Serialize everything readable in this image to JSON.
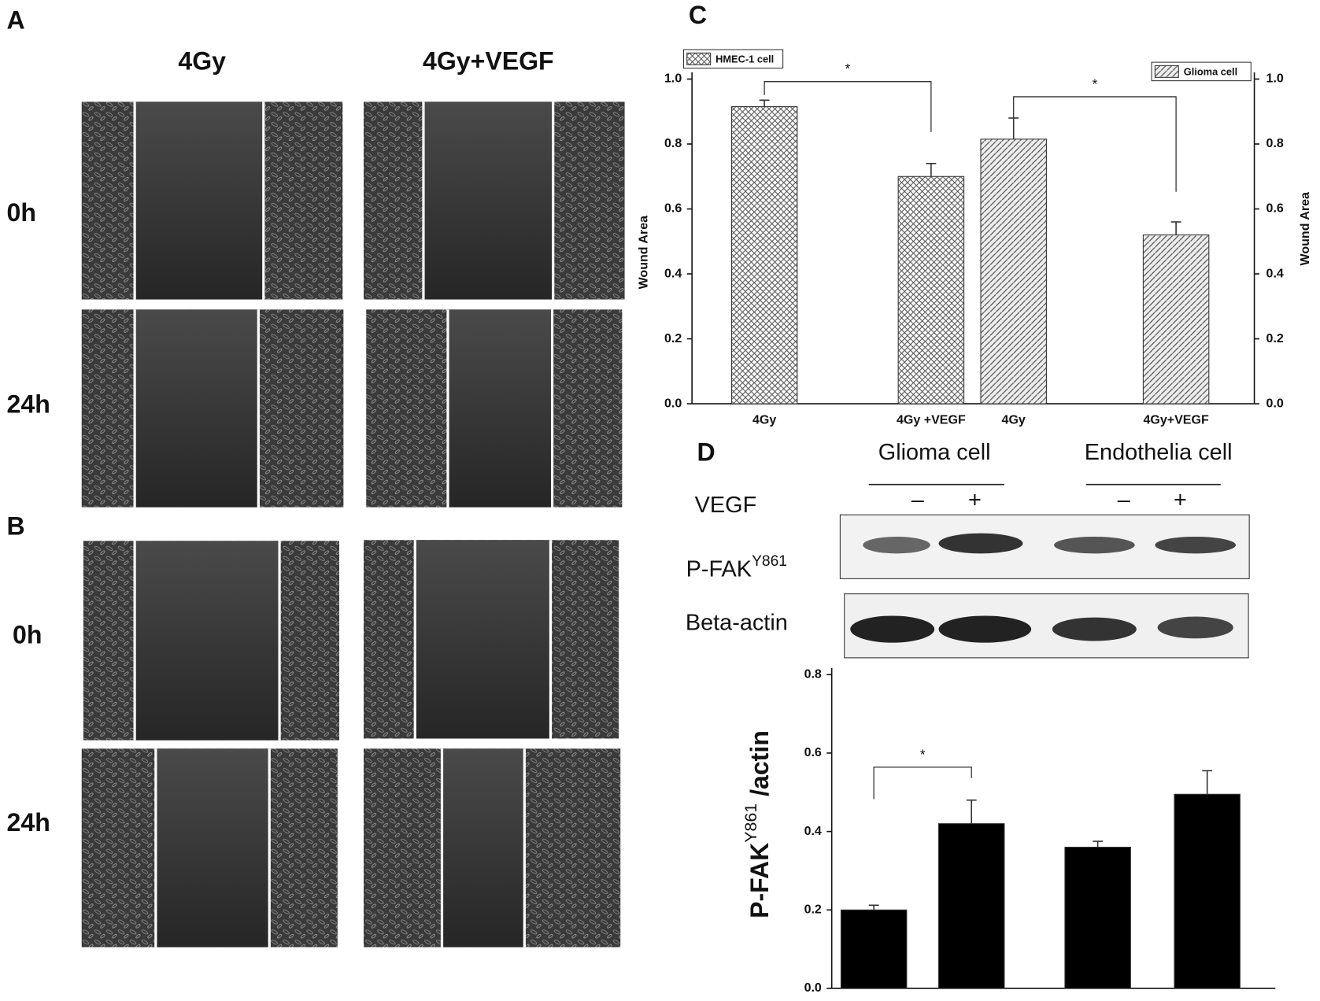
{
  "panel_a": {
    "label": "A",
    "columns": [
      "4Gy",
      "4Gy+VEGF"
    ],
    "rows": [
      "0h",
      "24h"
    ]
  },
  "panel_b": {
    "label": "B",
    "rows": [
      "0h",
      "24h"
    ]
  },
  "panel_d_blot": {
    "label": "D",
    "groups": [
      "Glioma  cell",
      "Endothelia cell"
    ],
    "treatment": "VEGF",
    "signs": [
      "–",
      "+",
      "–",
      "+"
    ],
    "rows": [
      {
        "name": "P-FAK",
        "superscript": "Y861"
      },
      {
        "name": "Beta-actin"
      }
    ]
  },
  "chart_data": [
    {
      "type": "bar",
      "label": "C",
      "ylabel": "Wound Area",
      "y2label": "Wound Area",
      "categories": [
        "4Gy",
        "4Gy +VEGF",
        "4Gy",
        "4Gy+VEGF"
      ],
      "series": [
        {
          "name": "HMEC-1 cell",
          "pattern": "crosshatch",
          "values": [
            0.915,
            0.7,
            null,
            null
          ],
          "errors": [
            0.02,
            0.04,
            null,
            null
          ]
        },
        {
          "name": "Glioma cell",
          "axis": "y2",
          "pattern": "hatch",
          "values": [
            null,
            null,
            0.815,
            0.52
          ],
          "errors": [
            null,
            null,
            0.065,
            0.04
          ]
        }
      ],
      "ylim": [
        0,
        1
      ],
      "yticks": [
        {
          "value": 0,
          "label": "0.0"
        },
        0.2,
        0.4,
        0.6,
        0.8,
        {
          "value": 1,
          "label": "1.0"
        }
      ],
      "y2lim": [
        0,
        1
      ],
      "y2ticks": [
        {
          "value": 0,
          "label": "0.0"
        },
        0.2,
        0.4,
        0.6,
        0.8,
        {
          "value": 1,
          "label": "1.0"
        }
      ],
      "annotations": [
        {
          "text": "*",
          "from": 0,
          "to": 1
        },
        {
          "text": "*",
          "from": 2,
          "to": 3
        }
      ]
    },
    {
      "type": "bar",
      "ylabel": "P-FAK",
      "ylabel_superscript": "Y861",
      "ylabel_suffix": " /actin",
      "color": "#000000",
      "values": [
        0.2,
        0.42,
        0.36,
        0.495
      ],
      "errors": [
        0.012,
        0.06,
        0.015,
        0.06
      ],
      "ylim": [
        0,
        0.8
      ],
      "yticks": [
        {
          "value": 0,
          "label": "0.0"
        },
        0.2,
        0.4,
        0.6,
        0.8
      ],
      "annotations": [
        {
          "text": "*",
          "from": 0,
          "to": 1
        }
      ]
    }
  ]
}
